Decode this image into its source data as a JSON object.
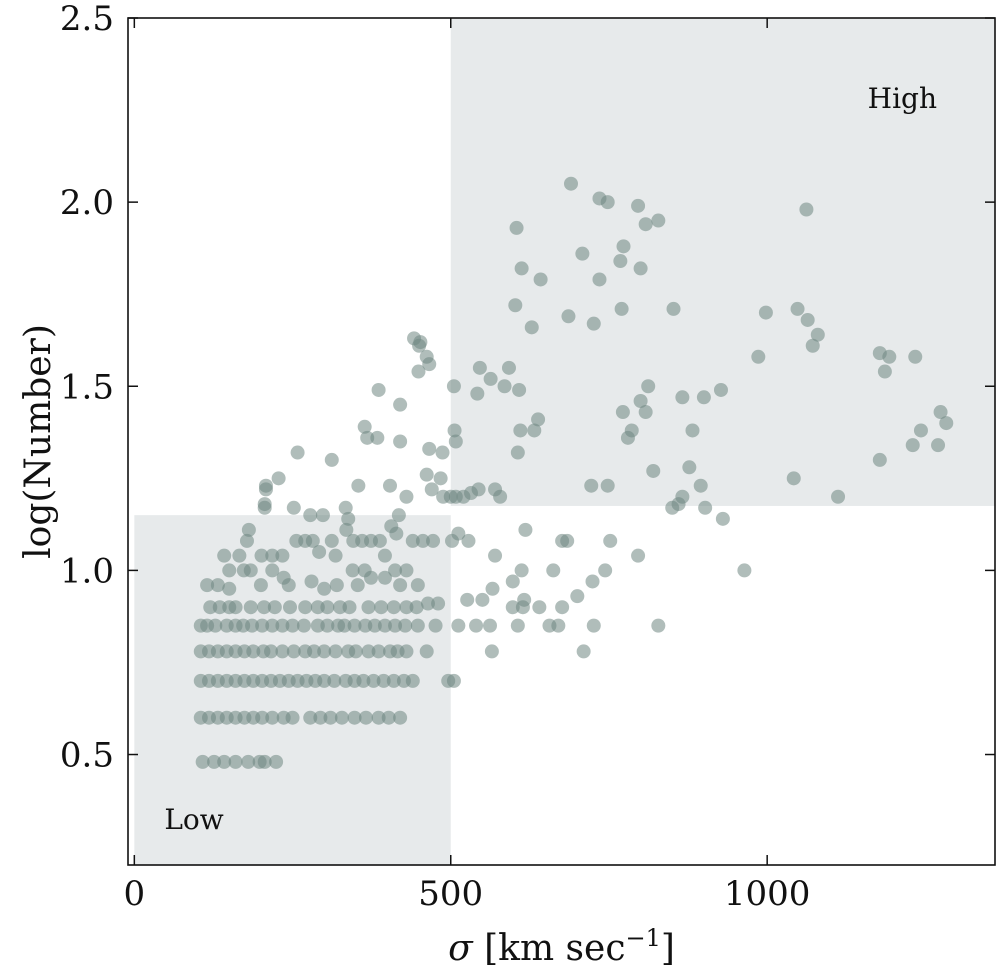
{
  "chart_data": {
    "type": "scatter",
    "title": "",
    "xlabel": "σ [km sec⁻¹]",
    "xlabel_parts": {
      "symbol": "σ",
      "unit_main": " [km sec",
      "unit_exp": "−1",
      "unit_close": "]"
    },
    "ylabel": "log(Number)",
    "xlim": [
      -10,
      1360
    ],
    "ylim": [
      0.2,
      2.5
    ],
    "xticks": [
      0,
      500,
      1000
    ],
    "xtick_labels": [
      "0",
      "500",
      "1000"
    ],
    "yticks": [
      0.5,
      1.0,
      1.5,
      2.0,
      2.5
    ],
    "ytick_labels": [
      "0.5",
      "1.0",
      "1.5",
      "2.0",
      "2.5"
    ],
    "grid": false,
    "regions": [
      {
        "label": "Low",
        "x": [
          0,
          500
        ],
        "y": [
          0.2,
          1.15
        ],
        "color": "#e7eaeb"
      },
      {
        "label": "High",
        "x": [
          500,
          1360
        ],
        "y": [
          1.175,
          2.5
        ],
        "color": "#e7eaeb"
      }
    ],
    "point_color": "#6f8782",
    "point_opacity": 0.55,
    "points": [
      [
        690,
        2.05
      ],
      [
        735,
        2.01
      ],
      [
        748,
        2.0
      ],
      [
        796,
        1.99
      ],
      [
        1062,
        1.98
      ],
      [
        808,
        1.94
      ],
      [
        828,
        1.95
      ],
      [
        604,
        1.93
      ],
      [
        773,
        1.88
      ],
      [
        708,
        1.86
      ],
      [
        768,
        1.84
      ],
      [
        612,
        1.82
      ],
      [
        800,
        1.82
      ],
      [
        642,
        1.79
      ],
      [
        735,
        1.79
      ],
      [
        602,
        1.72
      ],
      [
        852,
        1.71
      ],
      [
        770,
        1.71
      ],
      [
        1048,
        1.71
      ],
      [
        998,
        1.7
      ],
      [
        1064,
        1.68
      ],
      [
        686,
        1.69
      ],
      [
        726,
        1.67
      ],
      [
        628,
        1.66
      ],
      [
        1080,
        1.64
      ],
      [
        1072,
        1.61
      ],
      [
        442,
        1.63
      ],
      [
        450,
        1.61
      ],
      [
        452,
        1.62
      ],
      [
        462,
        1.58
      ],
      [
        466,
        1.56
      ],
      [
        449,
        1.54
      ],
      [
        986,
        1.58
      ],
      [
        1178,
        1.59
      ],
      [
        1193,
        1.58
      ],
      [
        1234,
        1.58
      ],
      [
        1186,
        1.54
      ],
      [
        546,
        1.55
      ],
      [
        592,
        1.55
      ],
      [
        563,
        1.52
      ],
      [
        585,
        1.5
      ],
      [
        505,
        1.5
      ],
      [
        542,
        1.48
      ],
      [
        608,
        1.49
      ],
      [
        812,
        1.5
      ],
      [
        800,
        1.46
      ],
      [
        866,
        1.47
      ],
      [
        900,
        1.47
      ],
      [
        927,
        1.49
      ],
      [
        386,
        1.49
      ],
      [
        420,
        1.45
      ],
      [
        638,
        1.41
      ],
      [
        632,
        1.38
      ],
      [
        610,
        1.38
      ],
      [
        772,
        1.43
      ],
      [
        808,
        1.43
      ],
      [
        786,
        1.38
      ],
      [
        780,
        1.36
      ],
      [
        882,
        1.38
      ],
      [
        1274,
        1.43
      ],
      [
        1283,
        1.4
      ],
      [
        1243,
        1.38
      ],
      [
        1230,
        1.34
      ],
      [
        1270,
        1.34
      ],
      [
        506,
        1.38
      ],
      [
        508,
        1.35
      ],
      [
        487,
        1.32
      ],
      [
        364,
        1.39
      ],
      [
        368,
        1.36
      ],
      [
        384,
        1.36
      ],
      [
        420,
        1.35
      ],
      [
        466,
        1.33
      ],
      [
        258,
        1.32
      ],
      [
        312,
        1.3
      ],
      [
        606,
        1.32
      ],
      [
        820,
        1.27
      ],
      [
        877,
        1.28
      ],
      [
        1042,
        1.25
      ],
      [
        1178,
        1.3
      ],
      [
        722,
        1.23
      ],
      [
        748,
        1.23
      ],
      [
        895,
        1.23
      ],
      [
        228,
        1.25
      ],
      [
        208,
        1.23
      ],
      [
        208,
        1.22
      ],
      [
        206,
        1.18
      ],
      [
        404,
        1.23
      ],
      [
        462,
        1.26
      ],
      [
        470,
        1.22
      ],
      [
        484,
        1.25
      ],
      [
        570,
        1.22
      ],
      [
        578,
        1.2
      ],
      [
        532,
        1.21
      ],
      [
        520,
        1.2
      ],
      [
        508,
        1.2
      ],
      [
        500,
        1.2
      ],
      [
        488,
        1.2
      ],
      [
        544,
        1.22
      ],
      [
        430,
        1.2
      ],
      [
        354,
        1.23
      ],
      [
        866,
        1.2
      ],
      [
        860,
        1.18
      ],
      [
        850,
        1.17
      ],
      [
        902,
        1.17
      ],
      [
        930,
        1.14
      ],
      [
        1112,
        1.2
      ],
      [
        252,
        1.17
      ],
      [
        206,
        1.17
      ],
      [
        298,
        1.15
      ],
      [
        278,
        1.15
      ],
      [
        334,
        1.17
      ],
      [
        338,
        1.14
      ],
      [
        418,
        1.15
      ],
      [
        406,
        1.12
      ],
      [
        181,
        1.11
      ],
      [
        178,
        1.08
      ],
      [
        166,
        1.04
      ],
      [
        142,
        1.04
      ],
      [
        201,
        1.04
      ],
      [
        218,
        1.04
      ],
      [
        234,
        1.04
      ],
      [
        256,
        1.08
      ],
      [
        270,
        1.08
      ],
      [
        282,
        1.08
      ],
      [
        292,
        1.05
      ],
      [
        312,
        1.08
      ],
      [
        318,
        1.04
      ],
      [
        335,
        1.11
      ],
      [
        346,
        1.08
      ],
      [
        360,
        1.08
      ],
      [
        374,
        1.08
      ],
      [
        388,
        1.08
      ],
      [
        396,
        1.04
      ],
      [
        414,
        1.1
      ],
      [
        440,
        1.08
      ],
      [
        456,
        1.08
      ],
      [
        472,
        1.08
      ],
      [
        512,
        1.1
      ],
      [
        502,
        1.08
      ],
      [
        528,
        1.08
      ],
      [
        570,
        1.04
      ],
      [
        618,
        1.11
      ],
      [
        676,
        1.08
      ],
      [
        684,
        1.08
      ],
      [
        752,
        1.08
      ],
      [
        796,
        1.04
      ],
      [
        744,
        1.0
      ],
      [
        612,
        1.0
      ],
      [
        598,
        0.97
      ],
      [
        566,
        0.95
      ],
      [
        662,
        1.0
      ],
      [
        616,
        0.92
      ],
      [
        700,
        0.93
      ],
      [
        724,
        0.97
      ],
      [
        964,
        1.0
      ],
      [
        150,
        1.0
      ],
      [
        173,
        1.0
      ],
      [
        184,
        1.0
      ],
      [
        200,
        0.96
      ],
      [
        218,
        1.0
      ],
      [
        236,
        0.98
      ],
      [
        244,
        0.96
      ],
      [
        280,
        0.97
      ],
      [
        300,
        0.95
      ],
      [
        320,
        0.96
      ],
      [
        345,
        1.0
      ],
      [
        353,
        0.96
      ],
      [
        364,
        1.0
      ],
      [
        374,
        0.98
      ],
      [
        396,
        0.98
      ],
      [
        412,
        1.0
      ],
      [
        420,
        0.96
      ],
      [
        430,
        1.0
      ],
      [
        448,
        0.96
      ],
      [
        115,
        0.96
      ],
      [
        132,
        0.96
      ],
      [
        150,
        0.95
      ],
      [
        120,
        0.9
      ],
      [
        135,
        0.9
      ],
      [
        150,
        0.9
      ],
      [
        160,
        0.9
      ],
      [
        184,
        0.9
      ],
      [
        205,
        0.9
      ],
      [
        222,
        0.9
      ],
      [
        246,
        0.9
      ],
      [
        270,
        0.9
      ],
      [
        290,
        0.9
      ],
      [
        305,
        0.9
      ],
      [
        325,
        0.9
      ],
      [
        340,
        0.9
      ],
      [
        370,
        0.9
      ],
      [
        390,
        0.9
      ],
      [
        410,
        0.9
      ],
      [
        430,
        0.9
      ],
      [
        446,
        0.9
      ],
      [
        464,
        0.91
      ],
      [
        480,
        0.91
      ],
      [
        526,
        0.92
      ],
      [
        550,
        0.92
      ],
      [
        598,
        0.9
      ],
      [
        614,
        0.9
      ],
      [
        640,
        0.9
      ],
      [
        676,
        0.9
      ],
      [
        105,
        0.85
      ],
      [
        115,
        0.85
      ],
      [
        128,
        0.85
      ],
      [
        146,
        0.85
      ],
      [
        160,
        0.85
      ],
      [
        172,
        0.85
      ],
      [
        186,
        0.85
      ],
      [
        202,
        0.85
      ],
      [
        218,
        0.85
      ],
      [
        234,
        0.85
      ],
      [
        250,
        0.85
      ],
      [
        268,
        0.85
      ],
      [
        290,
        0.85
      ],
      [
        305,
        0.85
      ],
      [
        322,
        0.85
      ],
      [
        332,
        0.85
      ],
      [
        348,
        0.85
      ],
      [
        365,
        0.85
      ],
      [
        380,
        0.85
      ],
      [
        396,
        0.85
      ],
      [
        412,
        0.85
      ],
      [
        428,
        0.85
      ],
      [
        448,
        0.85
      ],
      [
        476,
        0.85
      ],
      [
        512,
        0.85
      ],
      [
        540,
        0.85
      ],
      [
        562,
        0.85
      ],
      [
        606,
        0.85
      ],
      [
        656,
        0.85
      ],
      [
        670,
        0.85
      ],
      [
        726,
        0.85
      ],
      [
        828,
        0.85
      ],
      [
        105,
        0.78
      ],
      [
        118,
        0.78
      ],
      [
        132,
        0.78
      ],
      [
        146,
        0.78
      ],
      [
        160,
        0.78
      ],
      [
        174,
        0.78
      ],
      [
        188,
        0.78
      ],
      [
        204,
        0.78
      ],
      [
        216,
        0.78
      ],
      [
        234,
        0.78
      ],
      [
        252,
        0.78
      ],
      [
        270,
        0.78
      ],
      [
        284,
        0.78
      ],
      [
        300,
        0.78
      ],
      [
        318,
        0.78
      ],
      [
        338,
        0.78
      ],
      [
        350,
        0.78
      ],
      [
        370,
        0.78
      ],
      [
        386,
        0.78
      ],
      [
        404,
        0.78
      ],
      [
        416,
        0.78
      ],
      [
        430,
        0.78
      ],
      [
        462,
        0.78
      ],
      [
        565,
        0.78
      ],
      [
        710,
        0.78
      ],
      [
        105,
        0.7
      ],
      [
        118,
        0.7
      ],
      [
        132,
        0.7
      ],
      [
        146,
        0.7
      ],
      [
        160,
        0.7
      ],
      [
        174,
        0.7
      ],
      [
        188,
        0.7
      ],
      [
        202,
        0.7
      ],
      [
        216,
        0.7
      ],
      [
        230,
        0.7
      ],
      [
        244,
        0.7
      ],
      [
        258,
        0.7
      ],
      [
        272,
        0.7
      ],
      [
        286,
        0.7
      ],
      [
        300,
        0.7
      ],
      [
        316,
        0.7
      ],
      [
        334,
        0.7
      ],
      [
        348,
        0.7
      ],
      [
        362,
        0.7
      ],
      [
        378,
        0.7
      ],
      [
        394,
        0.7
      ],
      [
        410,
        0.7
      ],
      [
        426,
        0.7
      ],
      [
        440,
        0.7
      ],
      [
        496,
        0.7
      ],
      [
        505,
        0.7
      ],
      [
        105,
        0.6
      ],
      [
        118,
        0.6
      ],
      [
        132,
        0.6
      ],
      [
        146,
        0.6
      ],
      [
        160,
        0.6
      ],
      [
        174,
        0.6
      ],
      [
        188,
        0.6
      ],
      [
        202,
        0.6
      ],
      [
        218,
        0.6
      ],
      [
        236,
        0.6
      ],
      [
        250,
        0.6
      ],
      [
        278,
        0.6
      ],
      [
        294,
        0.6
      ],
      [
        310,
        0.6
      ],
      [
        328,
        0.6
      ],
      [
        348,
        0.6
      ],
      [
        366,
        0.6
      ],
      [
        386,
        0.6
      ],
      [
        402,
        0.6
      ],
      [
        420,
        0.6
      ],
      [
        108,
        0.48
      ],
      [
        126,
        0.48
      ],
      [
        142,
        0.48
      ],
      [
        160,
        0.48
      ],
      [
        180,
        0.48
      ],
      [
        198,
        0.48
      ],
      [
        206,
        0.48
      ],
      [
        224,
        0.48
      ]
    ]
  }
}
